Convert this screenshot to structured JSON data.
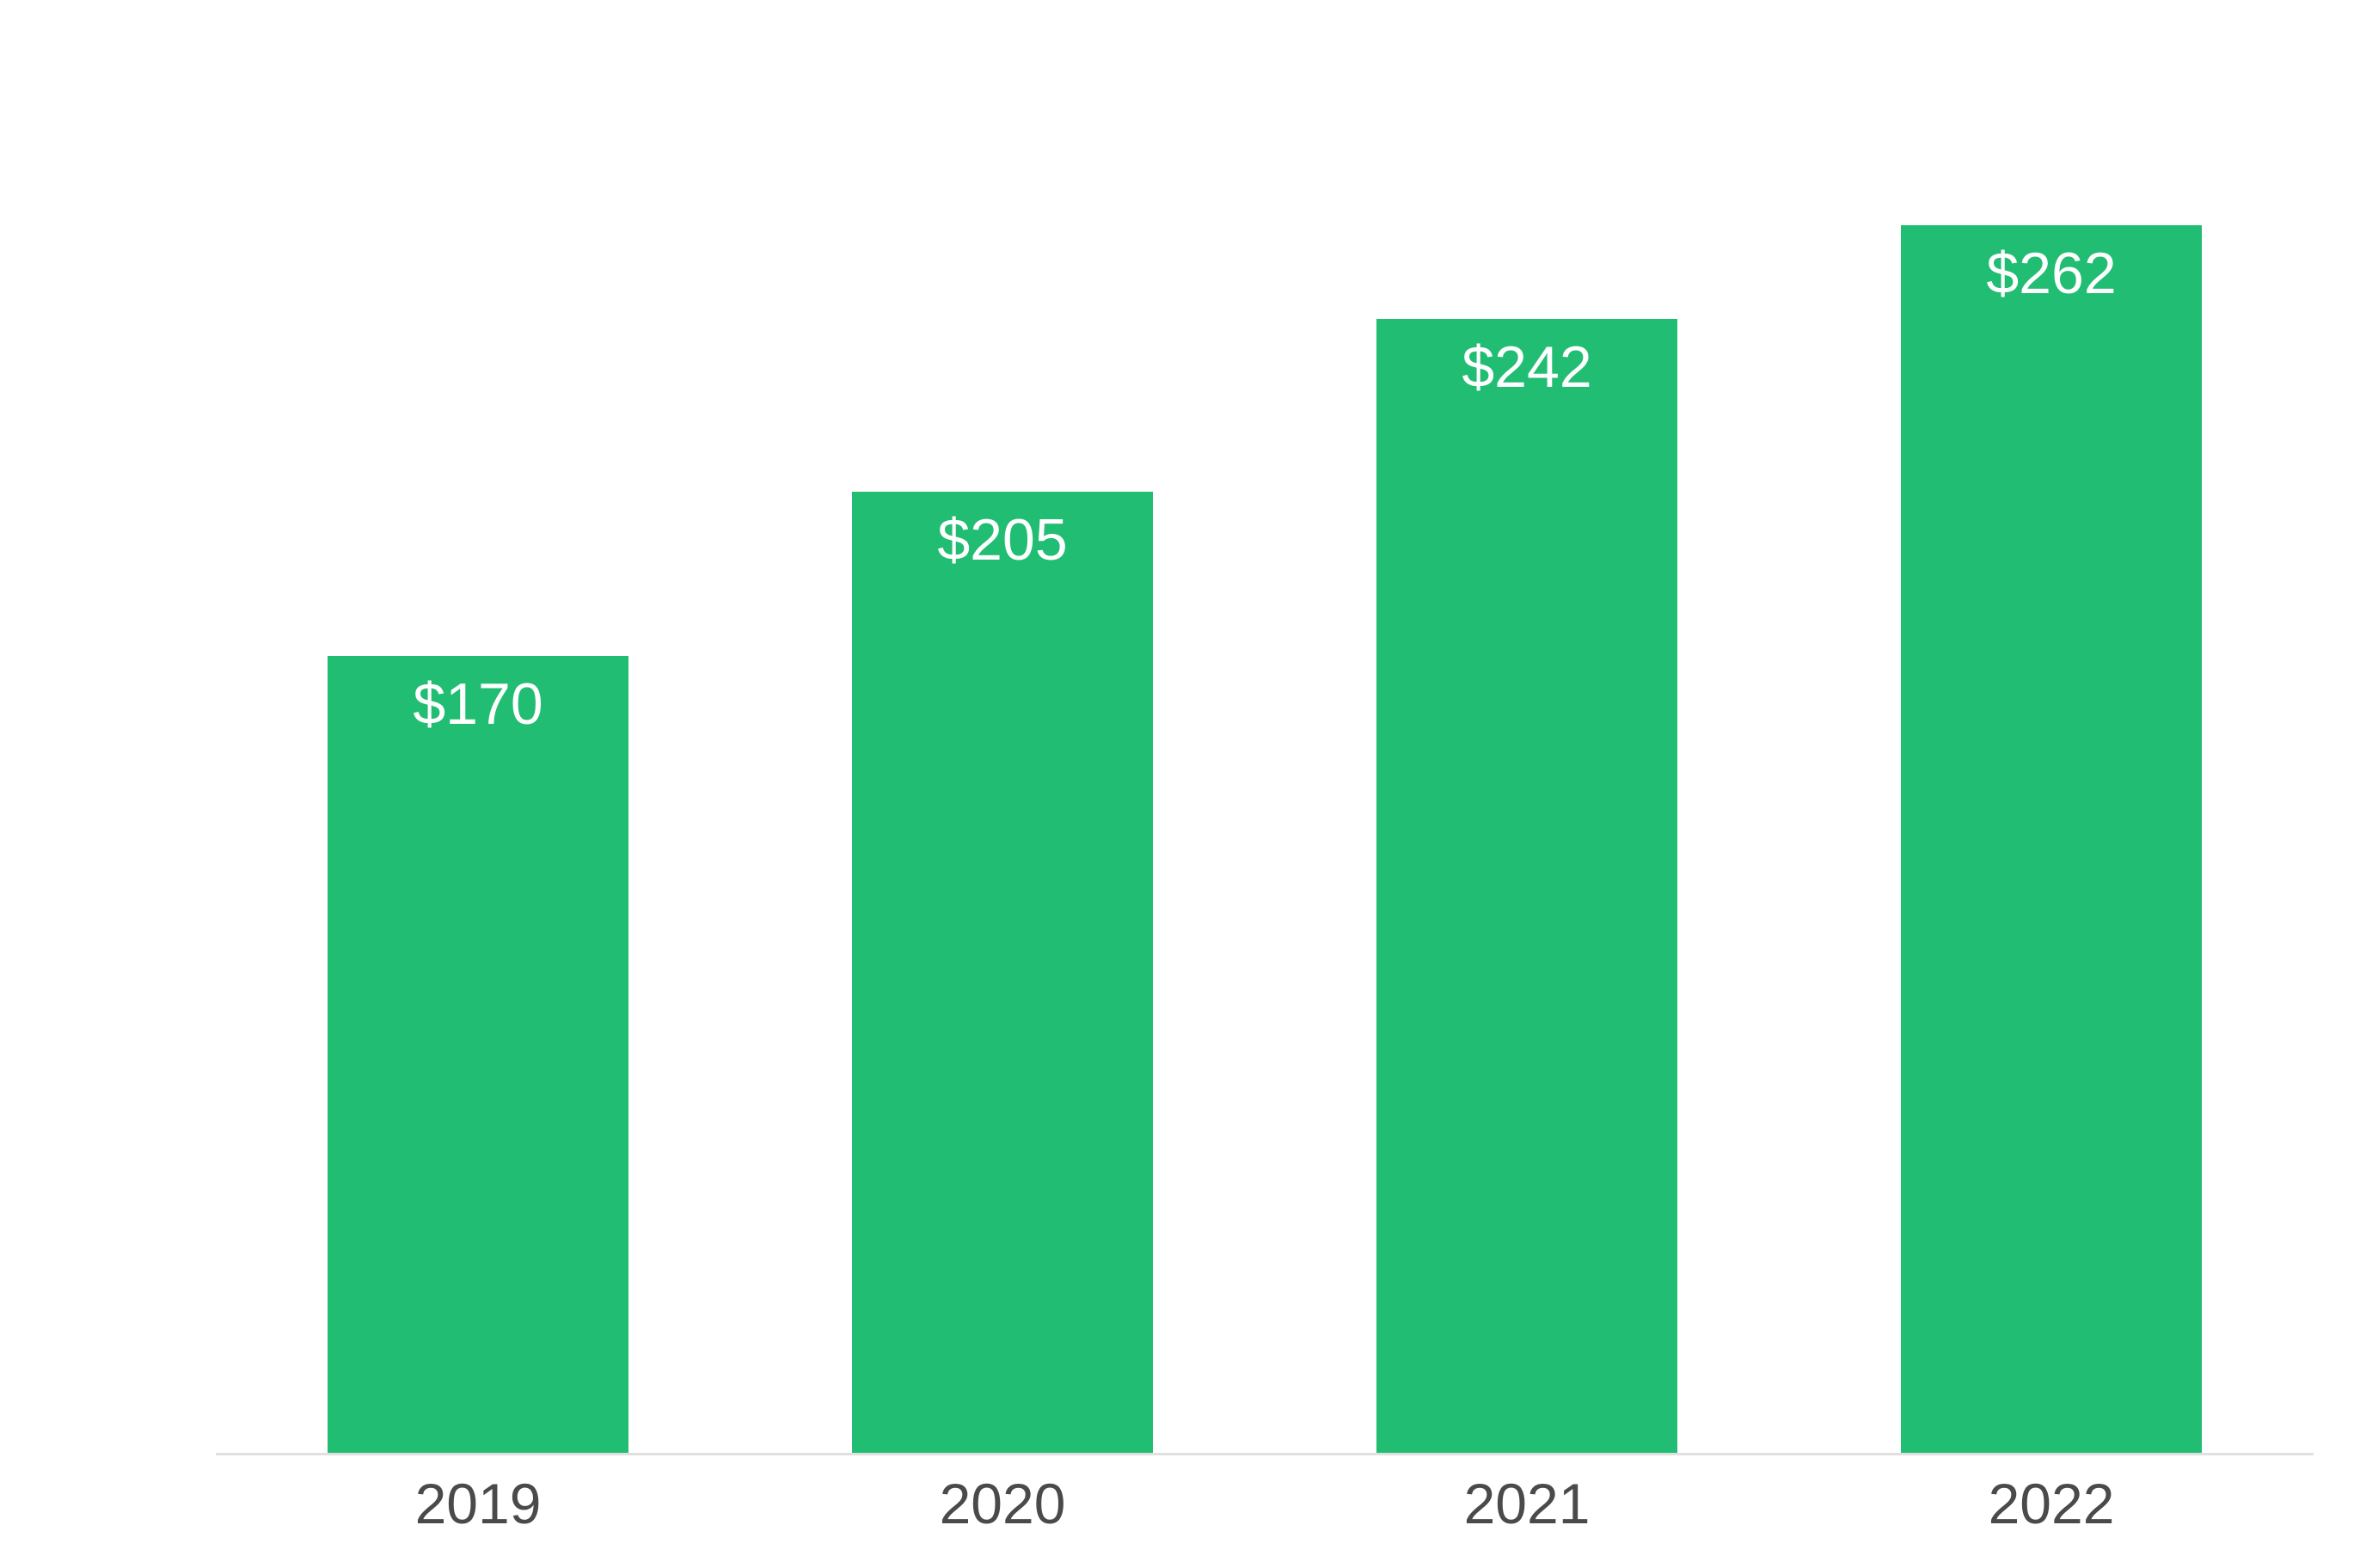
{
  "chart_data": {
    "type": "bar",
    "categories": [
      "2019",
      "2020",
      "2021",
      "2022"
    ],
    "values": [
      170,
      205,
      242,
      262
    ],
    "display_values": [
      "$170",
      "$205",
      "$242",
      "$262"
    ],
    "value_label_position": "inside-top",
    "ylim": [
      0,
      310
    ],
    "grid": false,
    "legend": false,
    "bar_color": "#21bd73",
    "value_label_color": "#ffffff",
    "tick_label_color": "#4a4a4a",
    "axis_line_color": "#e0e0e0",
    "background_color": "#ffffff"
  }
}
